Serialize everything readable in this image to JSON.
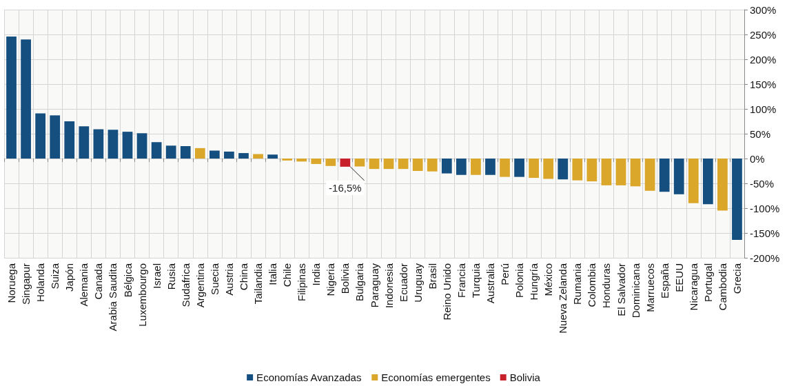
{
  "chart_data": {
    "type": "bar",
    "stacked": true,
    "grid": true,
    "legend": "bottom",
    "categories": [
      "Noruega",
      "Singapur",
      "Holanda",
      "Suiza",
      "Japón",
      "Alemania",
      "Canada",
      "Arabia Saudita",
      "Bélgica",
      "Luxembourgo",
      "Israel",
      "Rusia",
      "Sudafrica",
      "Argentina",
      "Suecia",
      "Austria",
      "China",
      "Tailandia",
      "Italia",
      "Chile",
      "Filipinas",
      "India",
      "Nigeria",
      "Bolivia",
      "Bulgaria",
      "Paraguay",
      "Indonesia",
      "Ecuador",
      "Uruguay",
      "Brasil",
      "Reino Unido",
      "Francia",
      "Turquia",
      "Australia",
      "Perú",
      "Polonia",
      "Hungría",
      "México",
      "Nueva Zelanda",
      "Rumania",
      "Colombia",
      "Honduras",
      "El Salvador",
      "Dominicana",
      "Marruecos",
      "España",
      "EEUU",
      "Nicaragua",
      "Portugal",
      "Cambodia",
      "Grecia"
    ],
    "ylim": [
      -200,
      300
    ],
    "yticks": [
      {
        "value": -200,
        "label": "-200%"
      },
      {
        "value": -150,
        "label": "-150%"
      },
      {
        "value": -100,
        "label": "-100%"
      },
      {
        "value": -50,
        "label": "-50%"
      },
      {
        "value": 0,
        "label": "0%"
      },
      {
        "value": 50,
        "label": "50%"
      },
      {
        "value": 100,
        "label": "100%"
      },
      {
        "value": 150,
        "label": "150%"
      },
      {
        "value": 200,
        "label": "200%"
      },
      {
        "value": 250,
        "label": "250%"
      },
      {
        "value": 300,
        "label": "300%"
      }
    ],
    "series": [
      {
        "name": "Economías Avanzadas",
        "color": "#154f80",
        "values": [
          246,
          240,
          91,
          87,
          75,
          65,
          59,
          58,
          54,
          51,
          33,
          26,
          25,
          null,
          16,
          14,
          11,
          null,
          8,
          null,
          null,
          null,
          null,
          null,
          null,
          null,
          null,
          null,
          null,
          null,
          -30,
          -33,
          null,
          -33,
          null,
          -37,
          null,
          null,
          -42,
          null,
          null,
          null,
          null,
          null,
          null,
          -67,
          -72,
          null,
          -92,
          null,
          -164
        ]
      },
      {
        "name": "Economías emergentes",
        "color": "#dba72a",
        "values": [
          null,
          null,
          null,
          null,
          null,
          null,
          null,
          null,
          null,
          null,
          null,
          null,
          null,
          21,
          null,
          null,
          null,
          9,
          null,
          -4,
          -6,
          -11,
          -15,
          null,
          -16,
          -21,
          -21,
          -21,
          -25,
          -26,
          null,
          null,
          -33,
          null,
          -37,
          null,
          -39,
          -41,
          null,
          -44,
          -46,
          -54,
          -54,
          -56,
          -65,
          null,
          null,
          -90,
          null,
          -105,
          null
        ]
      },
      {
        "name": "Bolivia",
        "color": "#c8202a",
        "values": [
          null,
          null,
          null,
          null,
          null,
          null,
          null,
          null,
          null,
          null,
          null,
          null,
          null,
          null,
          null,
          null,
          null,
          null,
          null,
          null,
          null,
          null,
          null,
          -16.5,
          null,
          null,
          null,
          null,
          null,
          null,
          null,
          null,
          null,
          null,
          null,
          null,
          null,
          null,
          null,
          null,
          null,
          null,
          null,
          null,
          null,
          null,
          null,
          null,
          null,
          null,
          null
        ],
        "value_labels": [
          null,
          null,
          null,
          null,
          null,
          null,
          null,
          null,
          null,
          null,
          null,
          null,
          null,
          null,
          null,
          null,
          null,
          null,
          null,
          null,
          null,
          null,
          null,
          "-16,5%",
          null,
          null,
          null,
          null,
          null,
          null,
          null,
          null,
          null,
          null,
          null,
          null,
          null,
          null,
          null,
          null,
          null,
          null,
          null,
          null,
          null,
          null,
          null,
          null,
          null,
          null,
          null
        ]
      }
    ]
  }
}
